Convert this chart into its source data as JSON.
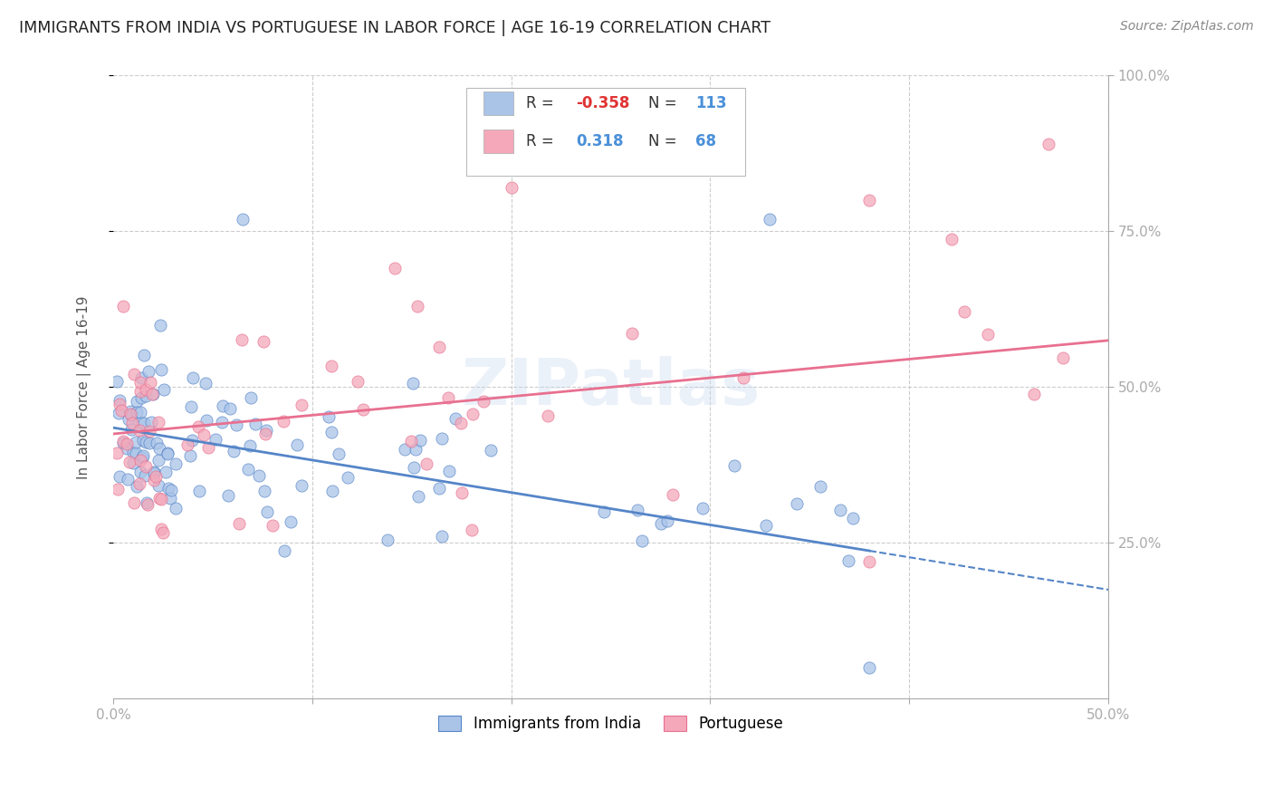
{
  "title": "IMMIGRANTS FROM INDIA VS PORTUGUESE IN LABOR FORCE | AGE 16-19 CORRELATION CHART",
  "source": "Source: ZipAtlas.com",
  "ylabel": "In Labor Force | Age 16-19",
  "xlim": [
    0.0,
    0.5
  ],
  "ylim": [
    0.0,
    1.0
  ],
  "india_color": "#aac4e8",
  "portuguese_color": "#f4a8ba",
  "india_line_color": "#5585c8",
  "portuguese_line_color": "#e87090",
  "india_R": -0.358,
  "india_N": 113,
  "portuguese_R": 0.318,
  "portuguese_N": 68,
  "watermark": "ZIPatlas",
  "background_color": "#ffffff",
  "grid_color": "#cccccc",
  "title_color": "#333333",
  "right_axis_color": "#5b9bd5",
  "india_intercept": 0.435,
  "india_slope": -0.52,
  "portuguese_intercept": 0.425,
  "portuguese_slope": 0.3
}
